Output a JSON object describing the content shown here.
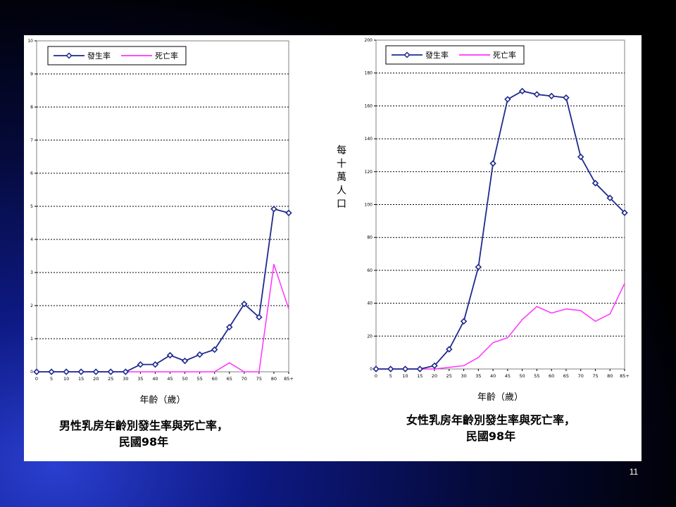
{
  "slide": {
    "number": "11"
  },
  "colors": {
    "incidence": "#1f2a8c",
    "mortality": "#ff33ff",
    "gridline": "#000000",
    "plot_border": "#808080"
  },
  "chart_data": [
    {
      "type": "line",
      "title": "男性乳房年齡別發生率與死亡率，民國98年",
      "title_lines": [
        "男性乳房年齡別發生率與死亡率，",
        "民國98年"
      ],
      "xlabel": "年齡（歲）",
      "ylabel": "",
      "categories": [
        "0",
        "5",
        "10",
        "15",
        "20",
        "25",
        "30",
        "35",
        "40",
        "45",
        "50",
        "55",
        "60",
        "65",
        "70",
        "75",
        "80",
        "85+"
      ],
      "ylim": [
        0,
        10
      ],
      "yticks": [
        0,
        1,
        2,
        3,
        4,
        5,
        6,
        7,
        8,
        9,
        10
      ],
      "ytick_labels": [
        "0",
        "1",
        "2",
        "3",
        "4",
        "5",
        "6",
        "7",
        "8",
        "9",
        "10"
      ],
      "grid": "horizontal dotted",
      "legend_position": "top-left",
      "series": [
        {
          "name": "發生率",
          "marker": "diamond",
          "color": "#1f2a8c",
          "values": [
            0,
            0,
            0,
            0,
            0,
            0,
            0,
            0.22,
            0.22,
            0.5,
            0.33,
            0.52,
            0.67,
            1.35,
            2.05,
            1.65,
            4.92,
            4.8
          ]
        },
        {
          "name": "死亡率",
          "marker": "none",
          "color": "#ff33ff",
          "values": [
            0,
            0,
            0,
            0,
            0,
            0,
            0,
            0,
            0,
            0,
            0,
            0,
            0,
            0.27,
            0,
            0,
            3.25,
            1.9
          ]
        }
      ]
    },
    {
      "type": "line",
      "title": "女性乳房年齡別發生率與死亡率，民國98年",
      "title_lines": [
        "女性乳房年齡別發生率與死亡率，",
        "民國98年"
      ],
      "xlabel": "年齡（歲）",
      "ylabel": "每十萬人口",
      "categories": [
        "0",
        "5",
        "10",
        "15",
        "20",
        "25",
        "30",
        "35",
        "40",
        "45",
        "50",
        "55",
        "60",
        "65",
        "70",
        "75",
        "80",
        "85+"
      ],
      "ylim": [
        0,
        200
      ],
      "yticks": [
        0,
        20,
        40,
        60,
        80,
        100,
        120,
        140,
        160,
        180,
        200
      ],
      "ytick_labels": [
        "0",
        "20",
        "40",
        "60",
        "80",
        "100",
        "120",
        "140",
        "160",
        "180",
        "200"
      ],
      "grid": "horizontal dotted",
      "legend_position": "top-left",
      "series": [
        {
          "name": "發生率",
          "marker": "diamond",
          "color": "#1f2a8c",
          "values": [
            0,
            0,
            0,
            0,
            2,
            12,
            29,
            62,
            125,
            164,
            169,
            167,
            166,
            165,
            129,
            113,
            104,
            95
          ]
        },
        {
          "name": "死亡率",
          "marker": "none",
          "color": "#ff33ff",
          "values": [
            0,
            0,
            0,
            0,
            0,
            1,
            2,
            7,
            16,
            19,
            30,
            38,
            34,
            36.5,
            35.5,
            29,
            33.5,
            52
          ]
        }
      ]
    }
  ]
}
